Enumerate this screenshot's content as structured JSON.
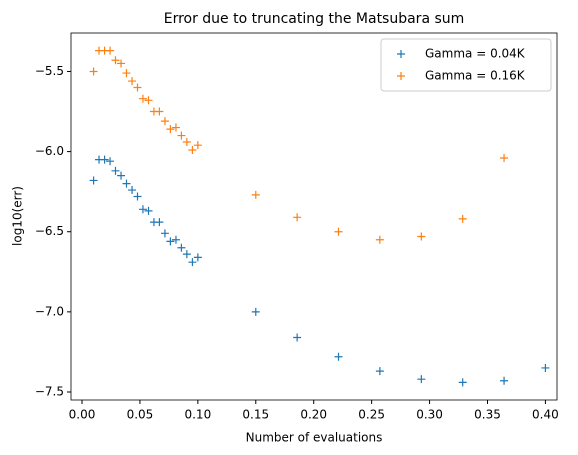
{
  "chart_data": {
    "type": "scatter",
    "title": "Error due to truncating the Matsubara sum",
    "xlabel": "Number of evaluations",
    "ylabel": "log10(err)",
    "x": [
      0.01,
      0.0147,
      0.0195,
      0.0242,
      0.0289,
      0.0337,
      0.0384,
      0.0432,
      0.0479,
      0.0526,
      0.0574,
      0.0621,
      0.0668,
      0.0716,
      0.0763,
      0.0811,
      0.0858,
      0.0905,
      0.0953,
      0.1,
      0.15,
      0.1857,
      0.2214,
      0.2571,
      0.2929,
      0.3286,
      0.3643,
      0.4
    ],
    "series": [
      {
        "name": "Gamma = 0.04K",
        "color": "#1f77b4",
        "values": [
          -6.18,
          -6.05,
          -6.05,
          -6.06,
          -6.12,
          -6.15,
          -6.2,
          -6.24,
          -6.28,
          -6.36,
          -6.37,
          -6.44,
          -6.44,
          -6.51,
          -6.56,
          -6.55,
          -6.6,
          -6.64,
          -6.69,
          -6.66,
          -7.0,
          -7.16,
          -7.28,
          -7.37,
          -7.42,
          -7.44,
          -7.43,
          -7.35
        ]
      },
      {
        "name": "Gamma = 0.16K",
        "color": "#ff7f0e",
        "values": [
          -5.5,
          -5.37,
          -5.37,
          -5.37,
          -5.43,
          -5.45,
          -5.51,
          -5.56,
          -5.6,
          -5.67,
          -5.68,
          -5.75,
          -5.75,
          -5.81,
          -5.86,
          -5.85,
          -5.9,
          -5.94,
          -5.99,
          -5.96,
          -6.27,
          -6.41,
          -6.5,
          -6.55,
          -6.53,
          -6.42,
          -6.04,
          null
        ]
      }
    ],
    "xlim": [
      -0.0095,
      0.41
    ],
    "ylim": [
      -7.55,
      -5.26
    ],
    "xticks": [
      {
        "value": 0,
        "label": "0.00"
      },
      0.05,
      {
        "value": 0.1,
        "label": "0.10"
      },
      0.15,
      {
        "value": 0.2,
        "label": "0.20"
      },
      0.25,
      {
        "value": 0.3,
        "label": "0.30"
      },
      0.35,
      {
        "value": 0.4,
        "label": "0.40"
      }
    ],
    "yticks": [
      {
        "value": -7.5,
        "label": "−7.5"
      },
      {
        "value": -7.0,
        "label": "−7.0"
      },
      {
        "value": -6.5,
        "label": "−6.5"
      },
      {
        "value": -6.0,
        "label": "−6.0"
      },
      {
        "value": -5.5,
        "label": "−5.5"
      }
    ],
    "grid": false,
    "legend": "upper right"
  }
}
